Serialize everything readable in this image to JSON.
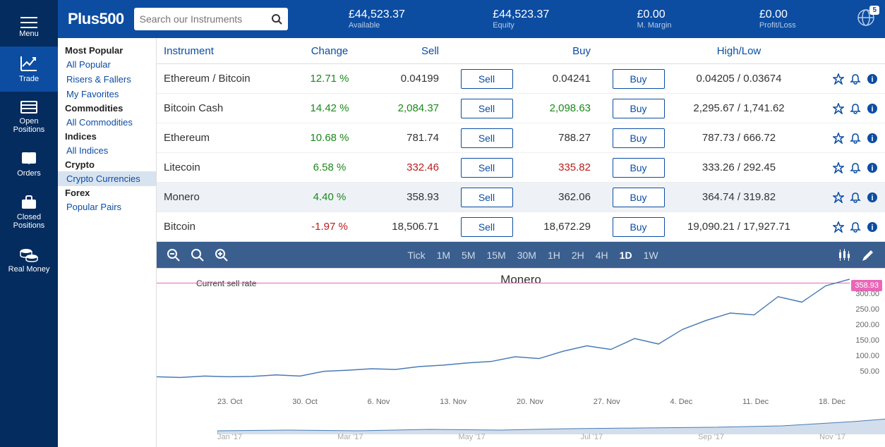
{
  "colors": {
    "nav_bg": "#052c5e",
    "nav_active": "#0c4da2",
    "topbar_bg": "#0c4da2",
    "chart_toolbar_bg": "#3a5f8f",
    "positive": "#1a8a1a",
    "negative": "#b91c1c",
    "line": "#4a7bb5",
    "sell_line": "#e966b8",
    "accent": "#0c4da2"
  },
  "nav": {
    "menu": "Menu",
    "trade": "Trade",
    "open_positions": "Open Positions",
    "orders": "Orders",
    "closed_positions": "Closed Positions",
    "real_money": "Real Money"
  },
  "header": {
    "logo": "Plus500",
    "search_placeholder": "Search our Instruments",
    "notification_count": "5",
    "balances": [
      {
        "value": "£44,523.37",
        "label": "Available"
      },
      {
        "value": "£44,523.37",
        "label": "Equity"
      },
      {
        "value": "£0.00",
        "label": "M. Margin"
      },
      {
        "value": "£0.00",
        "label": "Profit/Loss"
      }
    ]
  },
  "categories": [
    {
      "type": "group",
      "label": "Most Popular"
    },
    {
      "type": "item",
      "label": "All Popular"
    },
    {
      "type": "item",
      "label": "Risers & Fallers"
    },
    {
      "type": "item",
      "label": "My Favorites"
    },
    {
      "type": "group",
      "label": "Commodities"
    },
    {
      "type": "item",
      "label": "All Commodities"
    },
    {
      "type": "group",
      "label": "Indices"
    },
    {
      "type": "item",
      "label": "All Indices"
    },
    {
      "type": "group",
      "label": "Crypto"
    },
    {
      "type": "item",
      "label": "Crypto Currencies",
      "selected": true
    },
    {
      "type": "group",
      "label": "Forex"
    },
    {
      "type": "item",
      "label": "Popular Pairs"
    }
  ],
  "table": {
    "headers": {
      "instrument": "Instrument",
      "change": "Change",
      "sell": "Sell",
      "buy": "Buy",
      "highlow": "High/Low"
    },
    "sell_btn": "Sell",
    "buy_btn": "Buy",
    "rows": [
      {
        "instrument": "Ethereum / Bitcoin",
        "change": "12.71 %",
        "dir": "pos",
        "sell": "0.04199",
        "sell_dir": "",
        "buy": "0.04241",
        "buy_dir": "",
        "highlow": "0.04205 / 0.03674"
      },
      {
        "instrument": "Bitcoin Cash",
        "change": "14.42 %",
        "dir": "pos",
        "sell": "2,084.37",
        "sell_dir": "pos",
        "buy": "2,098.63",
        "buy_dir": "pos",
        "highlow": "2,295.67 / 1,741.62"
      },
      {
        "instrument": "Ethereum",
        "change": "10.68 %",
        "dir": "pos",
        "sell": "781.74",
        "sell_dir": "",
        "buy": "788.27",
        "buy_dir": "",
        "highlow": "787.73 / 666.72"
      },
      {
        "instrument": "Litecoin",
        "change": "6.58 %",
        "dir": "pos",
        "sell": "332.46",
        "sell_dir": "neg",
        "buy": "335.82",
        "buy_dir": "neg",
        "highlow": "333.26 / 292.45"
      },
      {
        "instrument": "Monero",
        "change": "4.40 %",
        "dir": "pos",
        "sell": "358.93",
        "sell_dir": "",
        "buy": "362.06",
        "buy_dir": "",
        "highlow": "364.74 / 319.82",
        "selected": true
      },
      {
        "instrument": "Bitcoin",
        "change": "-1.97 %",
        "dir": "neg",
        "sell": "18,506.71",
        "sell_dir": "",
        "buy": "18,672.29",
        "buy_dir": "",
        "highlow": "19,090.21 / 17,927.71"
      }
    ]
  },
  "chart": {
    "timeframes": [
      "Tick",
      "1M",
      "5M",
      "15M",
      "30M",
      "1H",
      "2H",
      "4H",
      "1D",
      "1W"
    ],
    "active_tf": "1D",
    "title": "Monero",
    "sell_rate_label": "Current sell rate",
    "current_price": "358.93",
    "y_ticks": [
      "300.00",
      "250.00",
      "200.00",
      "150.00",
      "100.00",
      "50.00"
    ],
    "ylim": [
      50,
      360
    ],
    "x_ticks": [
      "23. Oct",
      "30. Oct",
      "6. Nov",
      "13. Nov",
      "20. Nov",
      "27. Nov",
      "4. Dec",
      "11. Dec",
      "18. Dec"
    ],
    "x2_ticks": [
      "Jan '17",
      "Mar '17",
      "May '17",
      "Jul '17",
      "Sep '17",
      "Nov '17"
    ],
    "line_points": [
      [
        0,
        90
      ],
      [
        40,
        88
      ],
      [
        80,
        92
      ],
      [
        120,
        90
      ],
      [
        160,
        91
      ],
      [
        200,
        95
      ],
      [
        240,
        92
      ],
      [
        280,
        105
      ],
      [
        320,
        108
      ],
      [
        360,
        112
      ],
      [
        400,
        110
      ],
      [
        440,
        118
      ],
      [
        480,
        122
      ],
      [
        520,
        128
      ],
      [
        560,
        132
      ],
      [
        600,
        145
      ],
      [
        640,
        140
      ],
      [
        680,
        160
      ],
      [
        720,
        175
      ],
      [
        760,
        165
      ],
      [
        800,
        195
      ],
      [
        840,
        180
      ],
      [
        880,
        220
      ],
      [
        920,
        245
      ],
      [
        960,
        265
      ],
      [
        1000,
        260
      ],
      [
        1040,
        310
      ],
      [
        1080,
        295
      ],
      [
        1120,
        340
      ],
      [
        1160,
        358
      ]
    ],
    "mini_points": [
      [
        0,
        5
      ],
      [
        100,
        6
      ],
      [
        200,
        5
      ],
      [
        300,
        7
      ],
      [
        400,
        6
      ],
      [
        500,
        8
      ],
      [
        600,
        9
      ],
      [
        700,
        10
      ],
      [
        800,
        12
      ],
      [
        850,
        15
      ],
      [
        900,
        18
      ],
      [
        950,
        22
      ],
      [
        1000,
        26
      ],
      [
        1040,
        29
      ],
      [
        1060,
        28
      ]
    ]
  }
}
